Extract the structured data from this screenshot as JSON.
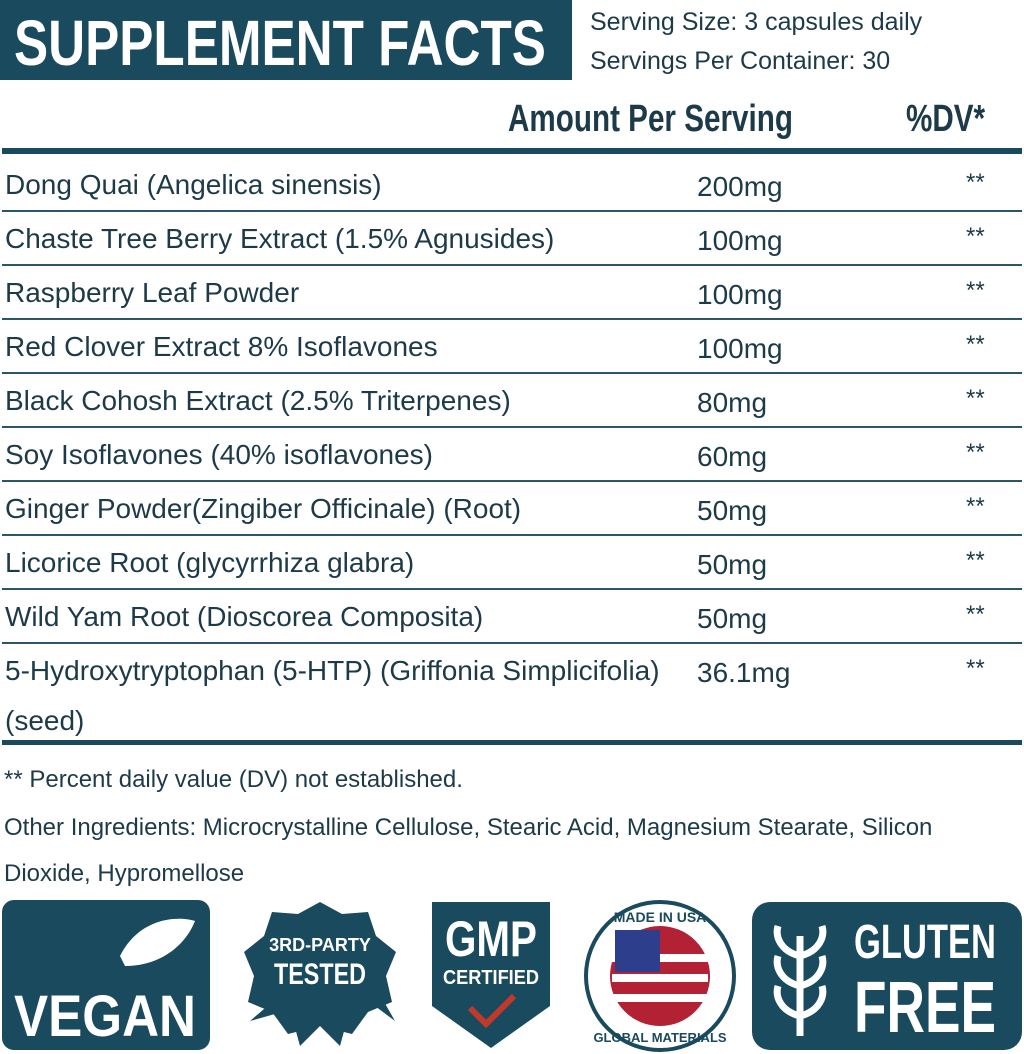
{
  "header": {
    "title": "SUPPLEMENT FACTS",
    "serving_size": "Serving Size: 3 capsules daily",
    "servings_per_container": "Servings Per Container: 30"
  },
  "table": {
    "columns": [
      "Amount Per Serving",
      "%DV*"
    ],
    "rows": [
      [
        "Dong Quai (Angelica sinensis)",
        "200mg",
        "**"
      ],
      [
        "Chaste Tree Berry Extract (1.5% Agnusides)",
        "100mg",
        "**"
      ],
      [
        "Raspberry Leaf Powder",
        "100mg",
        "**"
      ],
      [
        "Red Clover Extract 8% Isoflavones",
        "100mg",
        "**"
      ],
      [
        "Black Cohosh Extract (2.5% Triterpenes)",
        "80mg",
        "**"
      ],
      [
        "Soy Isoflavones (40% isoflavones)",
        "60mg",
        "**"
      ],
      [
        "Ginger Powder(Zingiber Officinale) (Root)",
        "50mg",
        "**"
      ],
      [
        "Licorice Root (glycyrrhiza glabra)",
        "50mg",
        "**"
      ],
      [
        "Wild Yam Root (Dioscorea Composita)",
        "50mg",
        "**"
      ],
      [
        "5-Hydroxytryptophan (5-HTP) (Griffonia Simplicifolia) (seed)",
        "36.1mg",
        "**"
      ]
    ]
  },
  "footnote": "** Percent daily value (DV) not established.",
  "other_ingredients": "Other Ingredients: Microcrystalline Cellulose, Stearic Acid, Magnesium Stearate, Silicon Dioxide, Hypromellose",
  "badges": [
    {
      "lines": [
        "VEGAN"
      ]
    },
    {
      "lines": [
        "3RD-PARTY",
        "TESTED"
      ]
    },
    {
      "lines": [
        "GMP",
        "CERTIFIED"
      ]
    },
    {
      "lines": [
        "MADE IN USA",
        "GLOBAL MATERIALS"
      ]
    },
    {
      "lines": [
        "GLUTEN",
        "FREE"
      ]
    }
  ]
}
